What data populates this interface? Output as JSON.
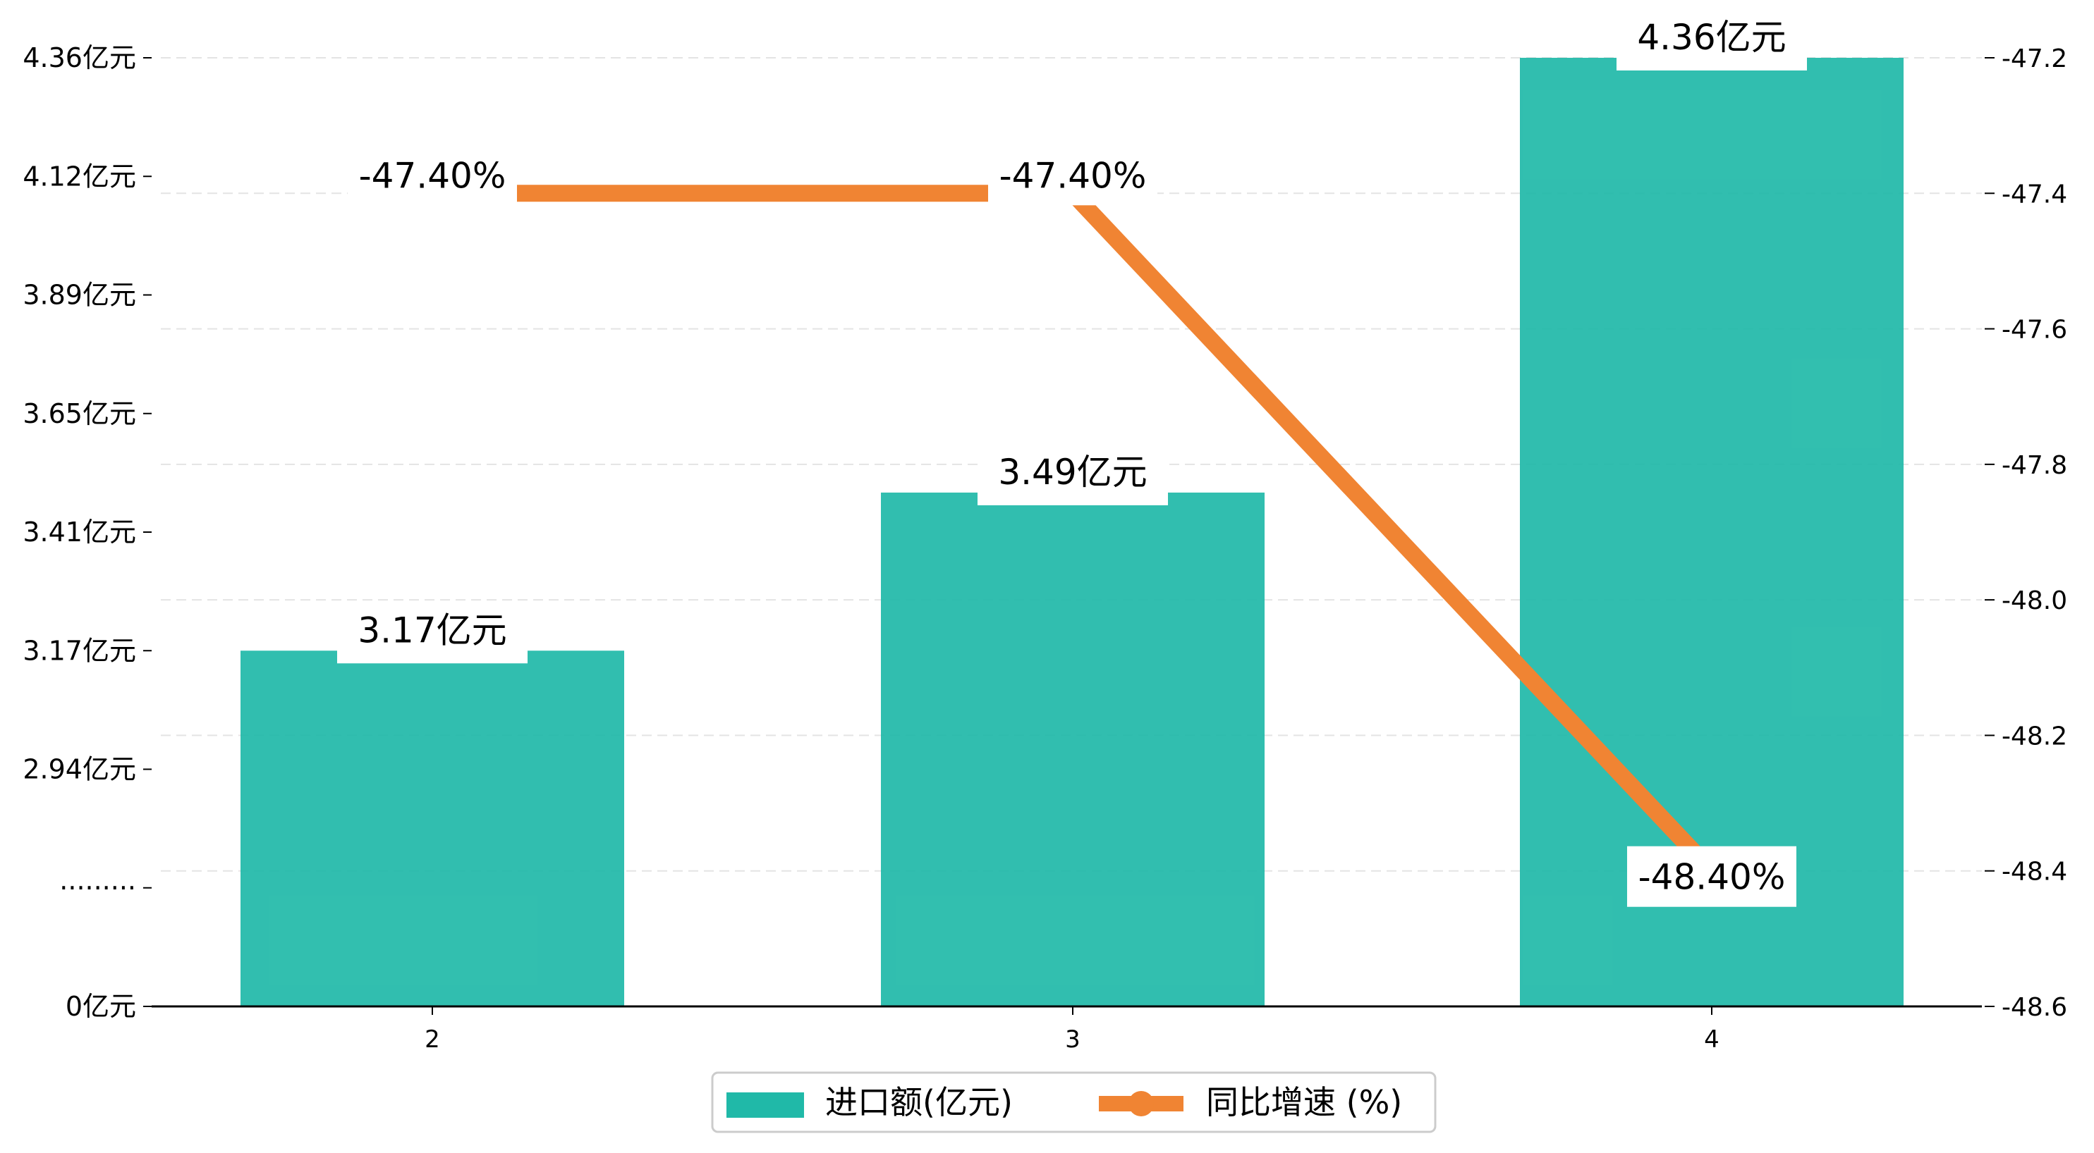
{
  "chart_data": {
    "type": "bar",
    "categories": [
      "2",
      "3",
      "4"
    ],
    "series": [
      {
        "name": "进口额(亿元)",
        "kind": "bar",
        "axis": "left",
        "values": [
          3.17,
          3.49,
          4.36
        ],
        "labels": [
          "3.17亿元",
          "3.49亿元",
          "4.36亿元"
        ],
        "color": "#20B9A8"
      },
      {
        "name": "同比增速 (%)",
        "kind": "line",
        "axis": "right",
        "values": [
          -47.4,
          -47.4,
          -48.4
        ],
        "labels": [
          "-47.40%",
          "-47.40%",
          "-48.40%"
        ],
        "color": "#F08433"
      }
    ],
    "left_axis": {
      "ticks": [
        0,
        2.7,
        2.94,
        3.17,
        3.41,
        3.65,
        3.89,
        4.12,
        4.36
      ],
      "tick_labels": [
        "0亿元",
        "·········",
        "2.94亿元",
        "3.17亿元",
        "3.41亿元",
        "3.65亿元",
        "3.89亿元",
        "4.12亿元",
        "4.36亿元"
      ],
      "break": true
    },
    "right_axis": {
      "ylim": [
        -48.6,
        -47.2
      ],
      "ticks": [
        -48.6,
        -48.4,
        -48.2,
        -48.0,
        -47.8,
        -47.6,
        -47.4,
        -47.2
      ],
      "tick_labels": [
        "-48.6",
        "-48.4",
        "-48.2",
        "-48.0",
        "-47.8",
        "-47.6",
        "-47.4",
        "-47.2"
      ]
    },
    "grid": true,
    "legend_position": "bottom-center",
    "title": "",
    "xlabel": "",
    "ylabel": ""
  },
  "colors": {
    "bar": "#20B9A8",
    "line": "#F08433",
    "grid": "#E4E4E4",
    "axis": "#000000"
  }
}
